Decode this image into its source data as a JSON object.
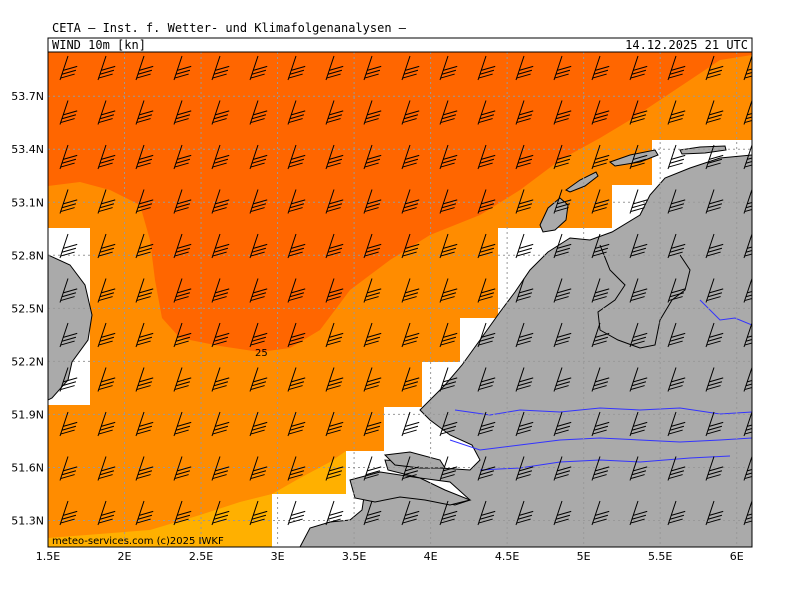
{
  "header": {
    "title": "CETA — Inst. f. Wetter- und Klimafolgenanalysen —",
    "parameter": "WIND 10m [kn]",
    "datetime": "14.12.2025 21 UTC"
  },
  "map": {
    "x_axis_labels": [
      "1.5E",
      "2E",
      "2.5E",
      "3E",
      "3.5E",
      "4E",
      "4.5E",
      "5E",
      "5.5E",
      "6E"
    ],
    "y_axis_labels": [
      "53.7N",
      "53.4N",
      "53.1N",
      "52.8N",
      "52.5N",
      "52.2N",
      "51.9N",
      "51.6N",
      "51.3N"
    ],
    "lon_range": [
      1.5,
      6.1
    ],
    "lat_range": [
      51.15,
      53.95
    ],
    "contour_label": "25",
    "credit": "meteo-services.com  (c)2025 IWKF",
    "colors": {
      "band_high": "#ff6600",
      "band_mid": "#ff8c00",
      "band_low": "#ffb000",
      "land": "#aaaaaa",
      "water_lines": "#3333ff",
      "grid": "#999999"
    }
  }
}
